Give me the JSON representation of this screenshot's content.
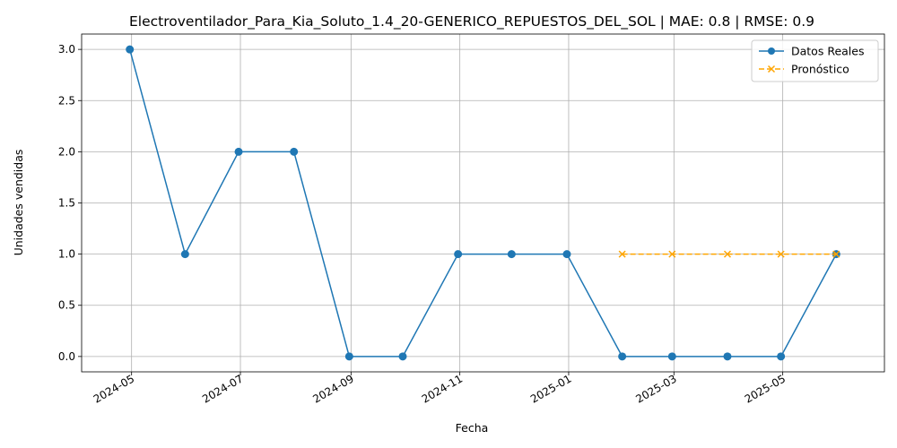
{
  "chart_data": {
    "type": "line",
    "title": "Electroventilador_Para_Kia_Soluto_1.4_20-GENERICO_REPUESTOS_DEL_SOL | MAE: 0.8 | RMSE: 0.9",
    "xlabel": "Fecha",
    "ylabel": "Unidades vendidas",
    "grid": true,
    "legend_position": "top-right",
    "ylim": [
      -0.15,
      3.15
    ],
    "xlim": [
      "2024-04-03",
      "2025-06-27"
    ],
    "x_ticks": [
      "2024-05",
      "2024-07",
      "2024-09",
      "2024-11",
      "2025-01",
      "2025-03",
      "2025-05"
    ],
    "y_ticks": [
      "0.0",
      "0.5",
      "1.0",
      "1.5",
      "2.0",
      "2.5",
      "3.0"
    ],
    "series": [
      {
        "name": "Datos Reales",
        "color": "#1f77b4",
        "style": "solid",
        "marker": "circle",
        "x": [
          "2024-04-30",
          "2024-05-31",
          "2024-06-30",
          "2024-07-31",
          "2024-08-31",
          "2024-09-30",
          "2024-10-31",
          "2024-11-30",
          "2024-12-31",
          "2025-01-31",
          "2025-02-28",
          "2025-03-31",
          "2025-04-30",
          "2025-05-31"
        ],
        "values": [
          3,
          1,
          2,
          2,
          0,
          0,
          1,
          1,
          1,
          0,
          0,
          0,
          0,
          1
        ]
      },
      {
        "name": "Pronóstico",
        "color": "#ffa500",
        "style": "dashed",
        "marker": "x",
        "x": [
          "2025-01-31",
          "2025-02-28",
          "2025-03-31",
          "2025-04-30",
          "2025-05-31"
        ],
        "values": [
          1,
          1,
          1,
          1,
          1
        ]
      }
    ]
  }
}
